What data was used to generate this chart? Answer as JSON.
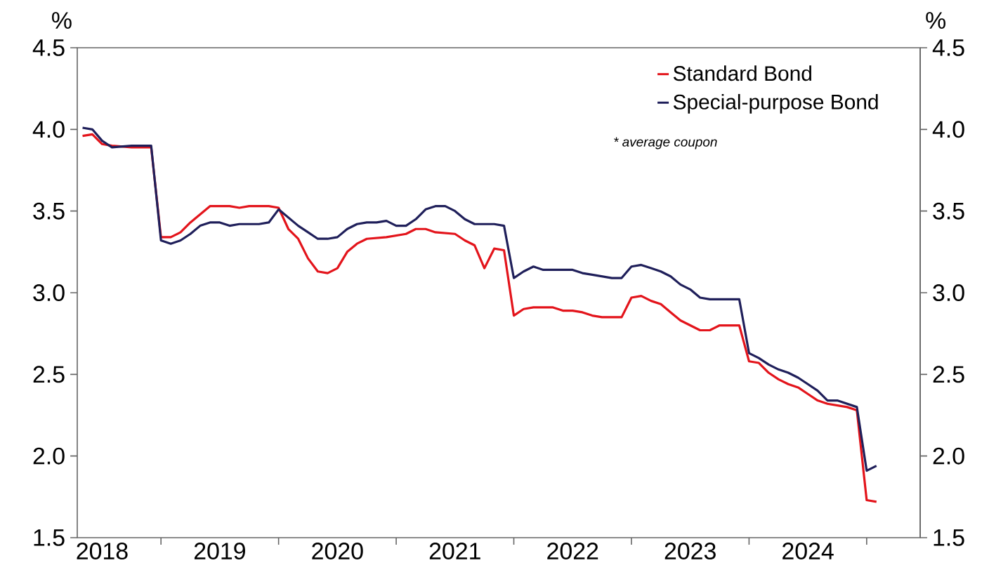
{
  "chart_data": {
    "type": "line",
    "ylabel": "%",
    "y2label": "%",
    "annotations": [
      "* average coupon"
    ],
    "xlim": [
      "2018-04-15",
      "2025-06-15"
    ],
    "xticks": [
      {
        "value": "2019-01",
        "label": null
      },
      {
        "value": "2020-01",
        "label": null
      },
      {
        "value": "2021-01",
        "label": null
      },
      {
        "value": "2022-01",
        "label": null
      },
      {
        "value": "2023-01",
        "label": null
      },
      {
        "value": "2024-01",
        "label": null
      },
      {
        "value": "2025-01",
        "label": null
      },
      {
        "value": "2018-07",
        "label": "2018"
      },
      {
        "value": "2019-07",
        "label": "2019"
      },
      {
        "value": "2020-07",
        "label": "2020"
      },
      {
        "value": "2021-07",
        "label": "2021"
      },
      {
        "value": "2022-07",
        "label": "2022"
      },
      {
        "value": "2023-07",
        "label": "2023"
      },
      {
        "value": "2024-07",
        "label": "2024"
      }
    ],
    "ylim": [
      1.5,
      4.5
    ],
    "yticks": [
      1.5,
      {
        "value": 2,
        "label": "2.0"
      },
      2.5,
      {
        "value": 3,
        "label": "3.0"
      },
      3.5,
      {
        "value": 4,
        "label": "4.0"
      },
      4.5
    ],
    "y2lim": [
      1.5,
      4.5
    ],
    "y2ticks": [
      1.5,
      {
        "value": 2,
        "label": "2.0"
      },
      2.5,
      {
        "value": 3,
        "label": "3.0"
      },
      3.5,
      {
        "value": 4,
        "label": "4.0"
      },
      4.5
    ],
    "legend": "top right",
    "grid": false,
    "marker": "none",
    "line_style": "solid",
    "series": [
      {
        "name": "Standard Bond",
        "color": "#e3141b",
        "x": [
          "2018-05",
          "2018-06",
          "2018-07",
          "2018-08",
          "2018-10",
          "2018-12",
          "2019-01",
          "2019-02",
          "2019-03",
          "2019-04",
          "2019-05",
          "2019-06",
          "2019-08",
          "2019-09",
          "2019-10",
          "2019-12",
          "2020-01",
          "2020-02",
          "2020-03",
          "2020-04",
          "2020-05",
          "2020-06",
          "2020-07",
          "2020-08",
          "2020-09",
          "2020-10",
          "2020-12",
          "2021-02",
          "2021-03",
          "2021-04",
          "2021-05",
          "2021-07",
          "2021-08",
          "2021-09",
          "2021-10",
          "2021-11",
          "2021-12",
          "2022-01",
          "2022-02",
          "2022-03",
          "2022-05",
          "2022-06",
          "2022-07",
          "2022-08",
          "2022-09",
          "2022-10",
          "2022-12",
          "2023-01",
          "2023-02",
          "2023-03",
          "2023-04",
          "2023-05",
          "2023-06",
          "2023-07",
          "2023-08",
          "2023-09",
          "2023-10",
          "2023-12",
          "2024-01",
          "2024-02",
          "2024-03",
          "2024-04",
          "2024-05",
          "2024-06",
          "2024-07",
          "2024-08",
          "2024-09",
          "2024-10",
          "2024-11",
          "2024-12",
          "2025-01",
          "2025-02"
        ],
        "values": [
          3.96,
          3.97,
          3.91,
          3.9,
          3.89,
          3.89,
          3.34,
          3.34,
          3.37,
          3.43,
          3.48,
          3.53,
          3.53,
          3.52,
          3.53,
          3.53,
          3.52,
          3.39,
          3.33,
          3.21,
          3.13,
          3.12,
          3.15,
          3.25,
          3.3,
          3.33,
          3.34,
          3.36,
          3.39,
          3.39,
          3.37,
          3.36,
          3.32,
          3.29,
          3.15,
          3.27,
          3.26,
          2.86,
          2.9,
          2.91,
          2.91,
          2.89,
          2.89,
          2.88,
          2.86,
          2.85,
          2.85,
          2.97,
          2.98,
          2.95,
          2.93,
          2.88,
          2.83,
          2.8,
          2.77,
          2.77,
          2.8,
          2.8,
          2.58,
          2.57,
          2.51,
          2.47,
          2.44,
          2.42,
          2.38,
          2.34,
          2.32,
          2.31,
          2.3,
          2.28,
          1.73,
          1.72
        ]
      },
      {
        "name": "Special-purpose Bond",
        "color": "#1f1f5a",
        "x": [
          "2018-05",
          "2018-06",
          "2018-07",
          "2018-08",
          "2018-10",
          "2018-12",
          "2019-01",
          "2019-02",
          "2019-03",
          "2019-04",
          "2019-05",
          "2019-06",
          "2019-07",
          "2019-08",
          "2019-09",
          "2019-11",
          "2019-12",
          "2020-01",
          "2020-02",
          "2020-03",
          "2020-04",
          "2020-05",
          "2020-06",
          "2020-07",
          "2020-08",
          "2020-09",
          "2020-10",
          "2020-11",
          "2020-12",
          "2021-01",
          "2021-02",
          "2021-03",
          "2021-04",
          "2021-05",
          "2021-06",
          "2021-07",
          "2021-08",
          "2021-09",
          "2021-11",
          "2021-12",
          "2022-01",
          "2022-02",
          "2022-03",
          "2022-04",
          "2022-07",
          "2022-08",
          "2022-09",
          "2022-11",
          "2022-12",
          "2023-01",
          "2023-02",
          "2023-03",
          "2023-04",
          "2023-05",
          "2023-06",
          "2023-07",
          "2023-08",
          "2023-09",
          "2023-10",
          "2023-12",
          "2024-01",
          "2024-02",
          "2024-03",
          "2024-04",
          "2024-05",
          "2024-06",
          "2024-07",
          "2024-08",
          "2024-09",
          "2024-10",
          "2024-11",
          "2024-12",
          "2025-01",
          "2025-02"
        ],
        "values": [
          4.01,
          4.0,
          3.93,
          3.89,
          3.9,
          3.9,
          3.32,
          3.3,
          3.32,
          3.36,
          3.41,
          3.43,
          3.43,
          3.41,
          3.42,
          3.42,
          3.43,
          3.51,
          3.46,
          3.41,
          3.37,
          3.33,
          3.33,
          3.34,
          3.39,
          3.42,
          3.43,
          3.43,
          3.44,
          3.41,
          3.41,
          3.45,
          3.51,
          3.53,
          3.53,
          3.5,
          3.45,
          3.42,
          3.42,
          3.41,
          3.09,
          3.13,
          3.16,
          3.14,
          3.14,
          3.12,
          3.11,
          3.09,
          3.09,
          3.16,
          3.17,
          3.15,
          3.13,
          3.1,
          3.05,
          3.02,
          2.97,
          2.96,
          2.96,
          2.96,
          2.63,
          2.6,
          2.56,
          2.53,
          2.51,
          2.48,
          2.44,
          2.4,
          2.34,
          2.34,
          2.32,
          2.3,
          1.91,
          1.94
        ]
      }
    ]
  }
}
